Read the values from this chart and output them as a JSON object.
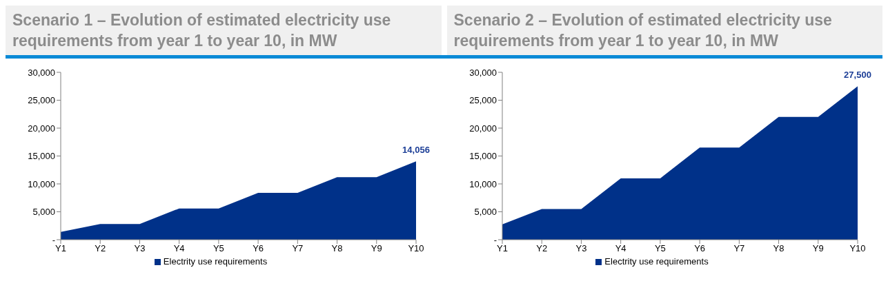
{
  "chart_data": [
    {
      "type": "area",
      "title": "Scenario 1 – Evolution of estimated electricity use requirements from year 1 to year 10, in MW",
      "categories": [
        "Y1",
        "Y2",
        "Y3",
        "Y4",
        "Y5",
        "Y6",
        "Y7",
        "Y8",
        "Y9",
        "Y10"
      ],
      "series": [
        {
          "name": "Electrity use requirements",
          "color": "#003189",
          "values": [
            1400,
            2800,
            2800,
            5600,
            5600,
            8400,
            8400,
            11200,
            11200,
            14056
          ],
          "value_labels": [
            null,
            null,
            null,
            null,
            null,
            null,
            null,
            null,
            null,
            "14,056"
          ]
        }
      ],
      "ylim": [
        0,
        30000
      ],
      "yticks": [
        {
          "value": 0,
          "label": "-"
        },
        {
          "value": 5000,
          "label": "5,000"
        },
        {
          "value": 10000,
          "label": "10,000"
        },
        {
          "value": 15000,
          "label": "15,000"
        },
        {
          "value": 20000,
          "label": "20,000"
        },
        {
          "value": 25000,
          "label": "25,000"
        },
        {
          "value": 30000,
          "label": "30,000"
        }
      ],
      "legend": "bottom"
    },
    {
      "type": "area",
      "title": "Scenario 2 – Evolution of estimated electricity use requirements from year 1 to year 10, in MW",
      "categories": [
        "Y1",
        "Y2",
        "Y3",
        "Y4",
        "Y5",
        "Y6",
        "Y7",
        "Y8",
        "Y9",
        "Y10"
      ],
      "series": [
        {
          "name": "Electrity use requirements",
          "color": "#003189",
          "values": [
            2750,
            5500,
            5500,
            11000,
            11000,
            16500,
            16500,
            22000,
            22000,
            27500
          ],
          "value_labels": [
            null,
            null,
            null,
            null,
            null,
            null,
            null,
            null,
            null,
            "27,500"
          ]
        }
      ],
      "ylim": [
        0,
        30000
      ],
      "yticks": [
        {
          "value": 0,
          "label": "-"
        },
        {
          "value": 5000,
          "label": "5,000"
        },
        {
          "value": 10000,
          "label": "10,000"
        },
        {
          "value": 15000,
          "label": "15,000"
        },
        {
          "value": 20000,
          "label": "20,000"
        },
        {
          "value": 25000,
          "label": "25,000"
        },
        {
          "value": 30000,
          "label": "30,000"
        }
      ],
      "legend": "bottom"
    }
  ]
}
